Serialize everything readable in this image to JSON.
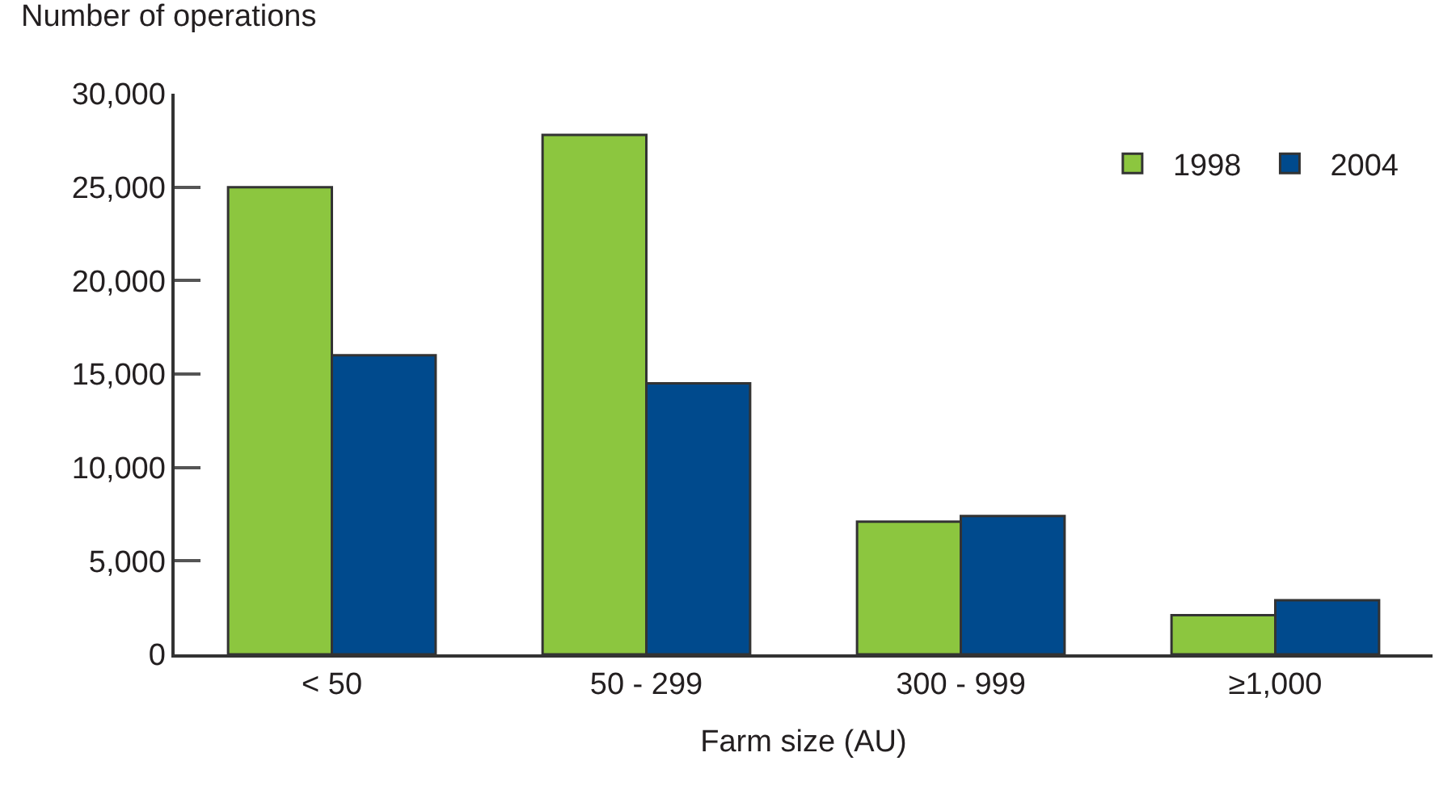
{
  "chart_data": {
    "type": "bar",
    "ylabel": "Number of operations",
    "xlabel": "Farm size (AU)",
    "categories": [
      "< 50",
      "50 - 299",
      "300 - 999",
      "≥1,000"
    ],
    "series": [
      {
        "name": "1998",
        "color": "#8cc63f",
        "values": [
          25000,
          27800,
          7100,
          2100
        ]
      },
      {
        "name": "2004",
        "color": "#004a8d",
        "values": [
          16000,
          14500,
          7400,
          2900
        ]
      }
    ],
    "ylim": [
      0,
      30000
    ],
    "yticks": [
      {
        "value": 0,
        "label": "0"
      },
      {
        "value": 5000,
        "label": "5,000"
      },
      {
        "value": 10000,
        "label": "10,000"
      },
      {
        "value": 15000,
        "label": "15,000"
      },
      {
        "value": 20000,
        "label": "20,000"
      },
      {
        "value": 25000,
        "label": "25,000"
      },
      {
        "value": 30000,
        "label": "30,000"
      }
    ],
    "grid": false,
    "legend": "top right"
  }
}
